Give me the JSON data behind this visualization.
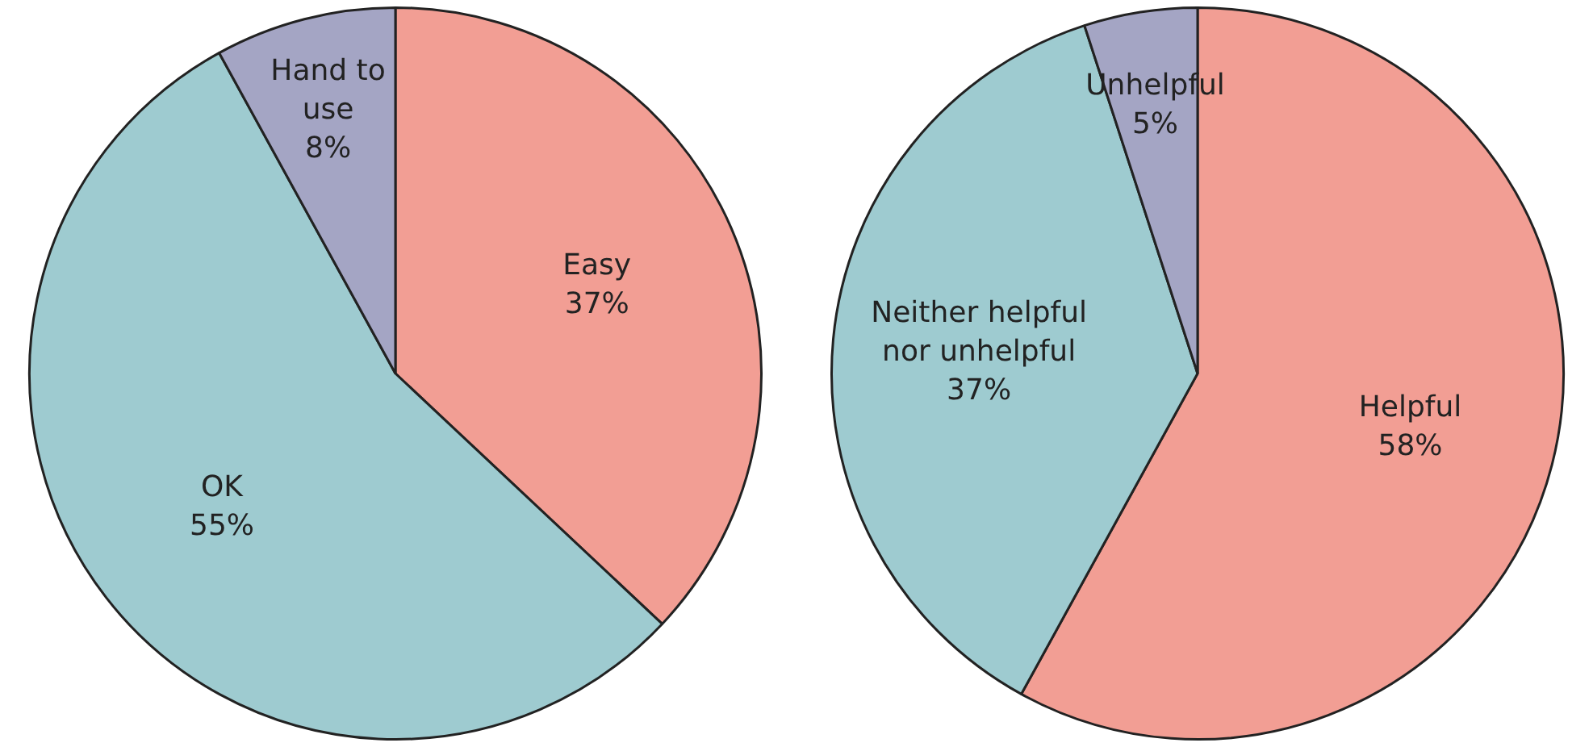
{
  "chart_data": [
    {
      "type": "pie",
      "categories": [
        "Easy",
        "OK",
        "Hand to use"
      ],
      "values": [
        37,
        55,
        8
      ],
      "value_labels": [
        "37%",
        "55%",
        "8%"
      ],
      "colors": [
        "#f29e94",
        "#9ecbd0",
        "#a4a5c4"
      ],
      "legend": false
    },
    {
      "type": "pie",
      "categories": [
        "Helpful",
        "Neither helpful nor unhelpful",
        "Unhelpful"
      ],
      "values": [
        58,
        37,
        5
      ],
      "value_labels": [
        "58%",
        "37%",
        "5%"
      ],
      "colors": [
        "#f29e94",
        "#9ecbd0",
        "#a4a5c4"
      ],
      "legend": false
    }
  ]
}
